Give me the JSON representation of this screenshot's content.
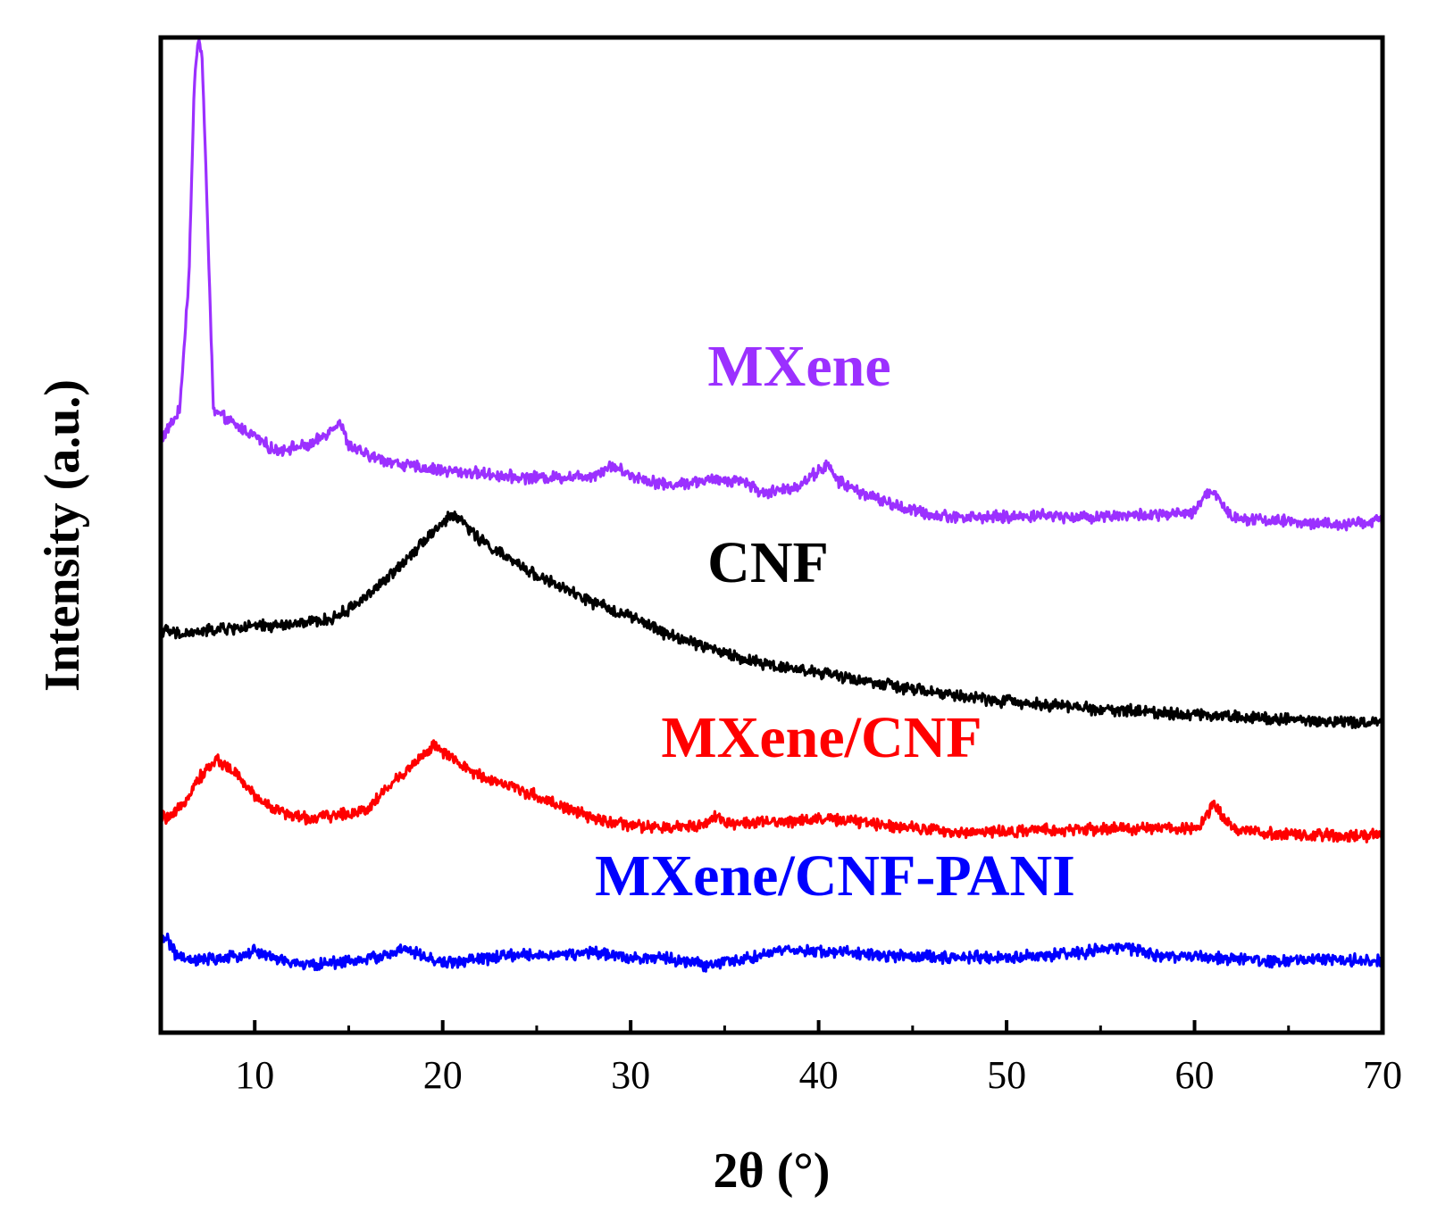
{
  "chart_data": {
    "type": "line",
    "title": "",
    "xlabel": "2θ (°)",
    "ylabel": "Intensity (a.u.)",
    "xlim": [
      5,
      70
    ],
    "ylim": [
      0,
      10
    ],
    "xticks": [
      10,
      20,
      30,
      40,
      50,
      60,
      70
    ],
    "xtick_labels": [
      "10",
      "20",
      "30",
      "40",
      "50",
      "60",
      "70"
    ],
    "yticks_shown": false,
    "grid": false,
    "series": [
      {
        "name": "MXene",
        "label": "MXene",
        "color": "#9b30ff",
        "x": [
          5,
          6,
          6.5,
          6.8,
          7.0,
          7.2,
          7.5,
          7.8,
          8.2,
          9,
          10,
          11,
          12,
          13,
          14,
          14.5,
          15,
          16,
          18,
          20,
          22,
          24,
          26,
          28,
          29,
          30,
          32,
          34,
          35,
          36,
          37,
          38,
          39,
          40,
          40.5,
          41,
          42,
          44,
          46,
          48,
          50,
          52,
          54,
          56,
          58,
          60,
          60.5,
          61,
          61.5,
          62,
          64,
          66,
          68,
          70
        ],
        "y": [
          5.95,
          6.25,
          7.6,
          9.6,
          10.0,
          9.8,
          8.1,
          6.25,
          6.2,
          6.1,
          6.0,
          5.85,
          5.88,
          5.9,
          6.05,
          6.15,
          5.9,
          5.8,
          5.7,
          5.65,
          5.62,
          5.58,
          5.58,
          5.6,
          5.7,
          5.6,
          5.5,
          5.55,
          5.55,
          5.55,
          5.42,
          5.45,
          5.5,
          5.65,
          5.7,
          5.55,
          5.45,
          5.3,
          5.2,
          5.18,
          5.18,
          5.2,
          5.18,
          5.2,
          5.2,
          5.22,
          5.4,
          5.45,
          5.3,
          5.18,
          5.15,
          5.12,
          5.1,
          5.15
        ]
      },
      {
        "name": "CNF",
        "label": "CNF",
        "color": "#000000",
        "x": [
          5,
          6,
          8,
          10,
          12,
          14,
          15,
          16,
          17,
          18,
          19,
          20,
          20.5,
          21,
          22,
          24,
          26,
          28,
          30,
          32,
          34,
          36,
          38,
          40,
          42,
          45,
          48,
          50,
          52,
          55,
          58,
          60,
          62,
          65,
          68,
          70
        ],
        "y": [
          4.05,
          4.0,
          4.05,
          4.08,
          4.1,
          4.15,
          4.25,
          4.4,
          4.55,
          4.75,
          4.95,
          5.12,
          5.2,
          5.15,
          4.95,
          4.7,
          4.5,
          4.32,
          4.18,
          4.0,
          3.88,
          3.75,
          3.68,
          3.62,
          3.55,
          3.45,
          3.37,
          3.33,
          3.3,
          3.25,
          3.22,
          3.2,
          3.18,
          3.15,
          3.12,
          3.12
        ]
      },
      {
        "name": "MXene/CNF",
        "label": "MXene/CNF",
        "color": "#ff0000",
        "x": [
          5,
          5.5,
          6,
          7,
          8,
          9,
          10,
          11,
          12,
          13,
          14,
          15,
          16,
          17,
          18,
          19,
          19.5,
          20,
          21,
          22,
          24,
          26,
          28,
          30,
          32,
          33,
          34,
          34.5,
          35,
          36,
          38,
          40,
          42,
          44,
          46,
          47,
          48,
          50,
          52,
          54,
          56,
          58,
          60,
          60.5,
          61,
          61.5,
          62,
          64,
          66,
          68,
          70
        ],
        "y": [
          2.18,
          2.15,
          2.25,
          2.55,
          2.75,
          2.6,
          2.38,
          2.25,
          2.18,
          2.15,
          2.18,
          2.2,
          2.25,
          2.45,
          2.62,
          2.8,
          2.88,
          2.82,
          2.68,
          2.58,
          2.45,
          2.3,
          2.15,
          2.08,
          2.05,
          2.08,
          2.1,
          2.18,
          2.12,
          2.1,
          2.12,
          2.15,
          2.12,
          2.08,
          2.05,
          2.0,
          2.02,
          2.02,
          2.03,
          2.04,
          2.05,
          2.05,
          2.05,
          2.15,
          2.3,
          2.18,
          2.05,
          2.0,
          1.98,
          1.98,
          1.98
        ]
      },
      {
        "name": "MXene/CNF-PANI",
        "label": "MXene/CNF-PANI",
        "color": "#0000ff",
        "x": [
          5,
          5.3,
          5.8,
          6.5,
          8,
          9,
          10,
          11,
          12,
          13,
          14,
          15,
          16,
          17,
          18,
          19,
          20,
          22,
          24,
          26,
          28,
          30,
          32,
          34,
          36,
          38,
          40,
          42,
          44,
          46,
          48,
          50,
          52,
          54,
          56,
          58,
          60,
          62,
          64,
          66,
          68,
          70
        ],
        "y": [
          0.92,
          0.97,
          0.78,
          0.72,
          0.74,
          0.76,
          0.82,
          0.75,
          0.7,
          0.68,
          0.7,
          0.72,
          0.74,
          0.78,
          0.84,
          0.76,
          0.7,
          0.74,
          0.78,
          0.78,
          0.8,
          0.76,
          0.74,
          0.68,
          0.74,
          0.82,
          0.82,
          0.8,
          0.77,
          0.76,
          0.76,
          0.75,
          0.78,
          0.8,
          0.86,
          0.78,
          0.76,
          0.74,
          0.72,
          0.73,
          0.73,
          0.73
        ]
      }
    ]
  }
}
